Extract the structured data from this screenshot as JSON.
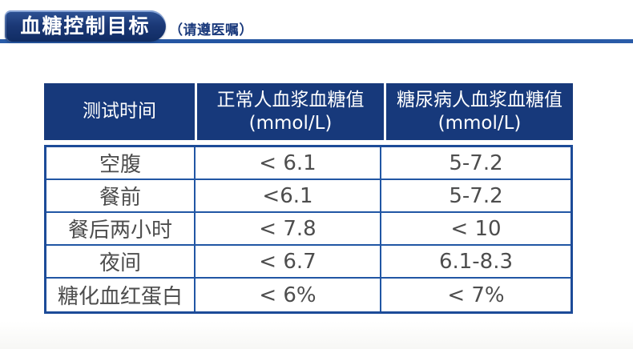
{
  "page": {
    "title": "血糖控制目标",
    "disclaimer": "（请遵医嘱）"
  },
  "colors": {
    "badge_navy_top": "#2f5496",
    "badge_navy_bottom": "#102c63",
    "header_cell_bg": "#17397b",
    "table_border_blue": "#2156a4",
    "table_outer_border": "#1c4b98",
    "underline_bar": "#2a5ca8",
    "body_text_gray": "#4d4d4d",
    "disclaimer_text": "#1b3a7c"
  },
  "table": {
    "columns": [
      {
        "label": "测试时间",
        "sub": ""
      },
      {
        "label": "正常人血浆血糖值",
        "sub": "(mmol/L)"
      },
      {
        "label": "糖尿病人血浆血糖值",
        "sub": "(mmol/L)"
      }
    ],
    "rows": [
      {
        "time": "空腹",
        "normal": "< 6.1",
        "diabetic": "5-7.2"
      },
      {
        "time": "餐前",
        "normal": "<6.1",
        "diabetic": "5-7.2"
      },
      {
        "time": "餐后两小时",
        "normal": "< 7.8",
        "diabetic": "< 10"
      },
      {
        "time": "夜间",
        "normal": "< 6.7",
        "diabetic": "6.1-8.3"
      },
      {
        "time": "糖化血红蛋白",
        "normal": "< 6%",
        "diabetic": "< 7%"
      }
    ]
  }
}
